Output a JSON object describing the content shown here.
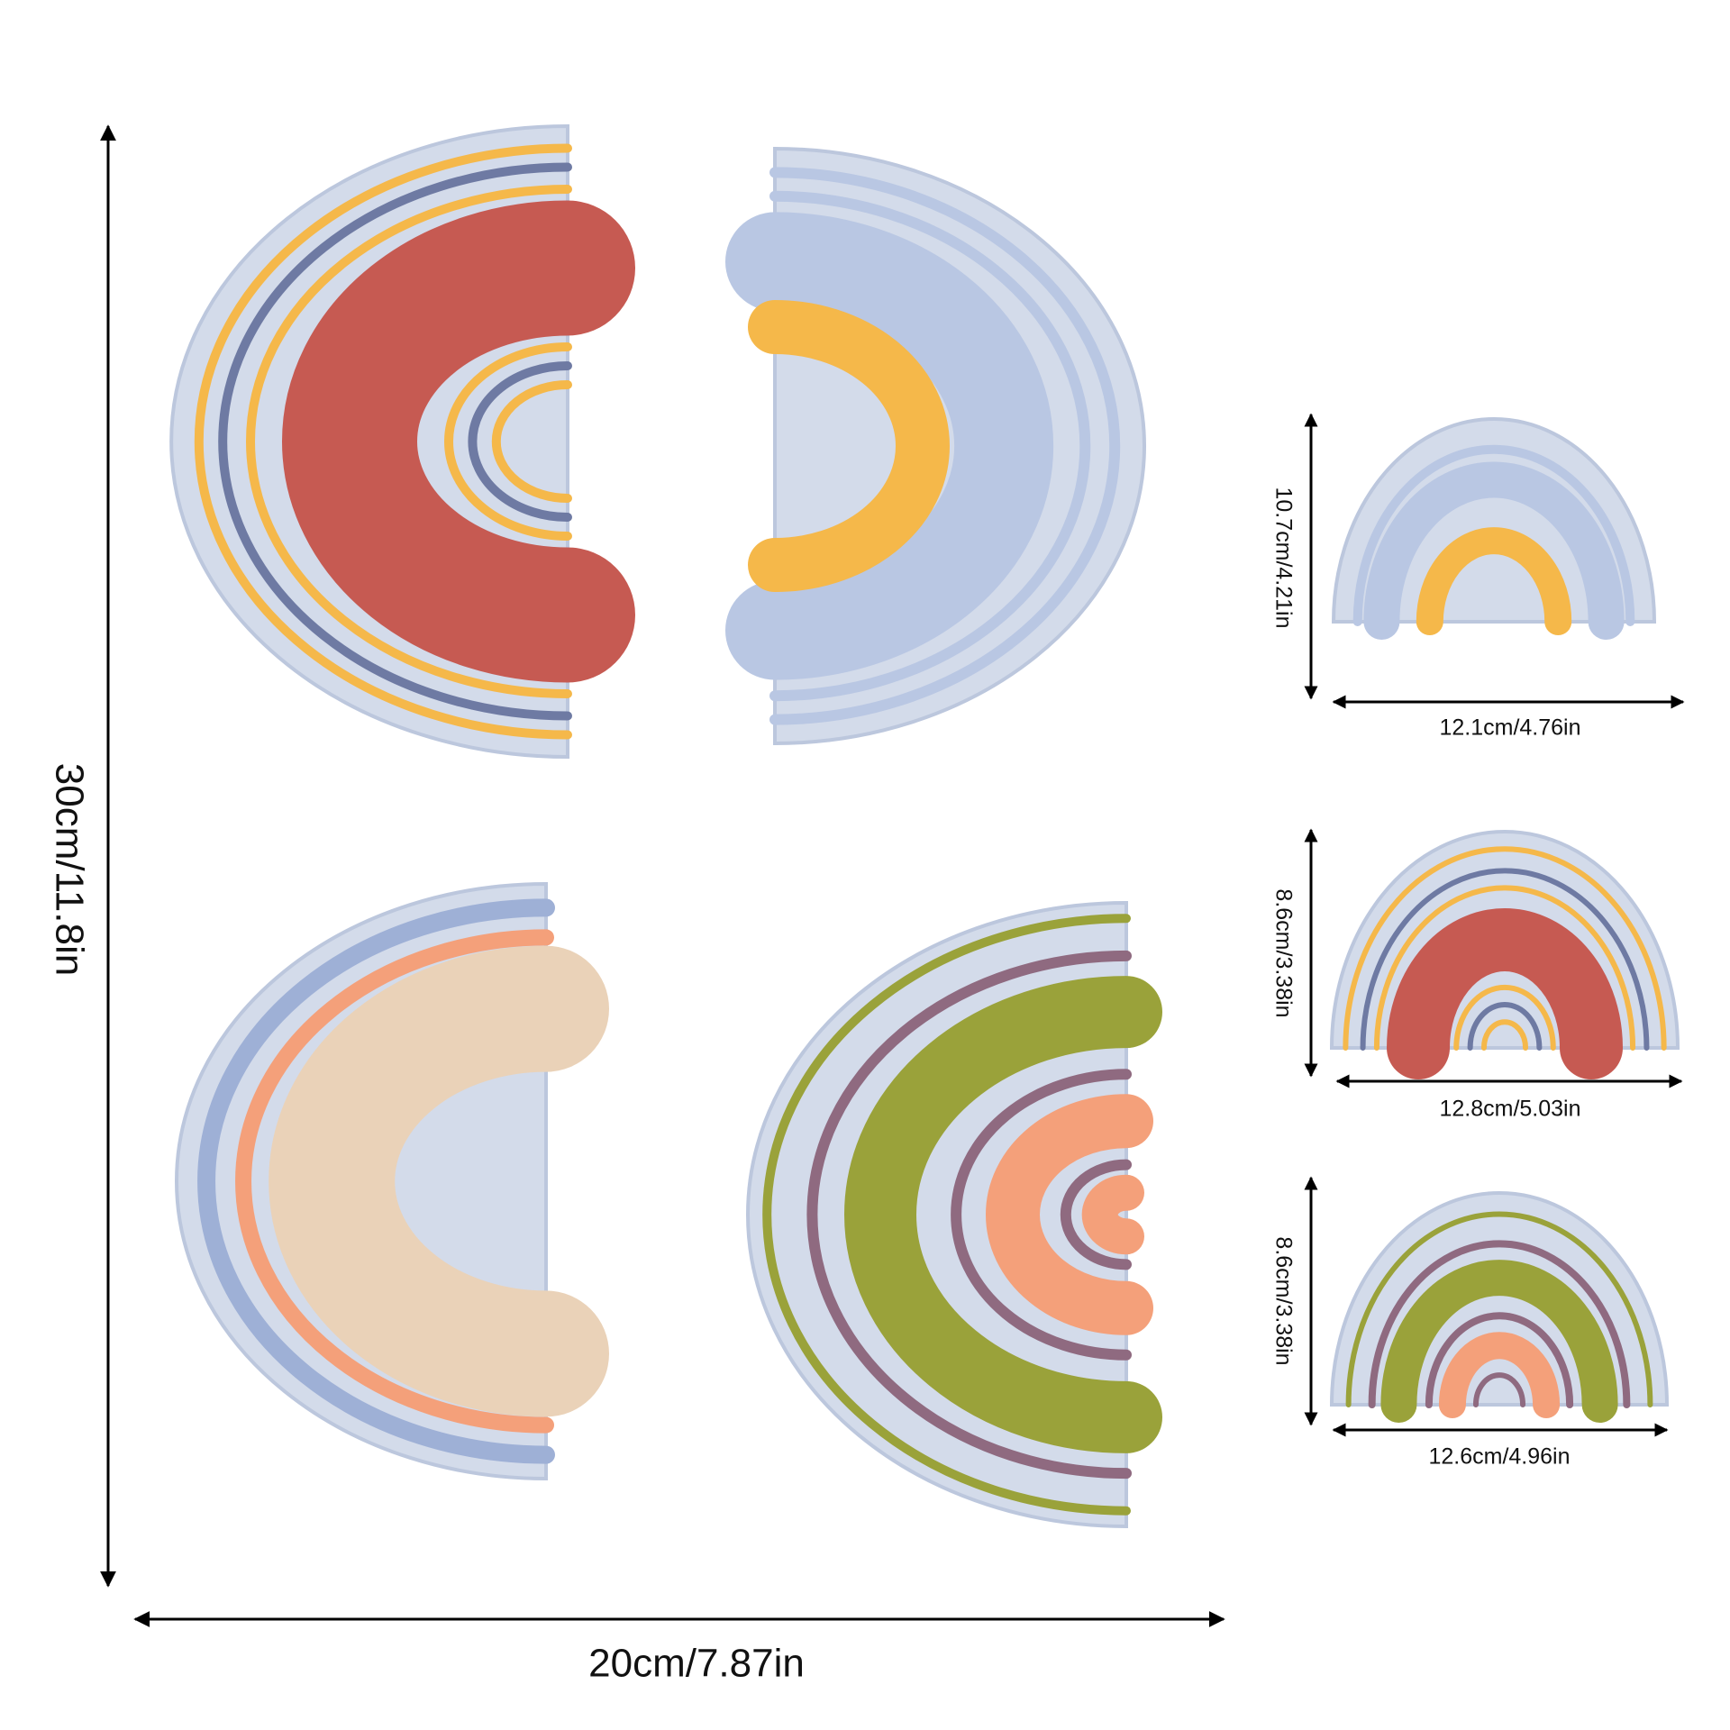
{
  "main": {
    "height": "30cm/11.8in",
    "width": "20cm/7.87in"
  },
  "stickers": [
    {
      "height": "10.7cm/4.21in",
      "width": "12.1cm/4.76in"
    },
    {
      "height": "8.6cm/3.38in",
      "width": "12.8cm/5.03in"
    },
    {
      "height": "8.6cm/3.38in",
      "width": "12.6cm/4.96in"
    }
  ]
}
